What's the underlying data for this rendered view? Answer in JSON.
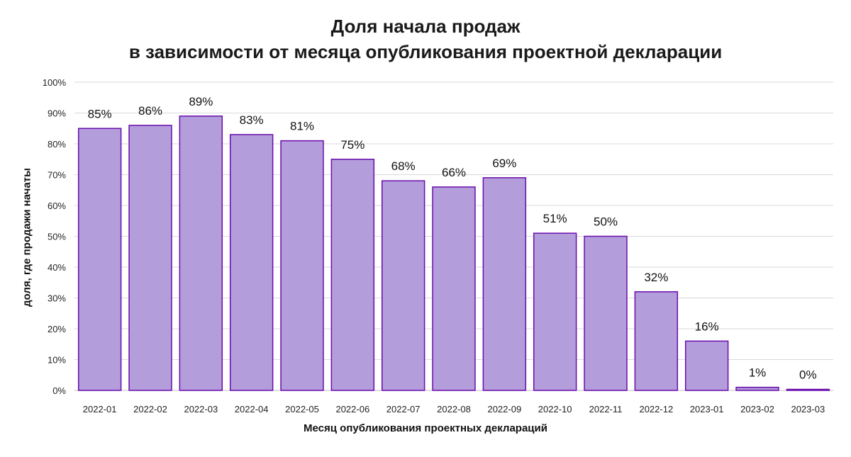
{
  "chart_data": {
    "type": "bar",
    "title_line1": "Доля начала продаж",
    "title_line2": "в зависимости от месяца опубликования проектной декларации",
    "xlabel": "Месяц  опубликования  проектных  деклараций",
    "ylabel": "доля,  где продажи начаты",
    "ylim": [
      0,
      100
    ],
    "y_ticks": [
      "0%",
      "10%",
      "20%",
      "30%",
      "40%",
      "50%",
      "60%",
      "70%",
      "80%",
      "90%",
      "100%"
    ],
    "categories": [
      "2022-01",
      "2022-02",
      "2022-03",
      "2022-04",
      "2022-05",
      "2022-06",
      "2022-07",
      "2022-08",
      "2022-09",
      "2022-10",
      "2022-11",
      "2022-12",
      "2023-01",
      "2023-02",
      "2023-03"
    ],
    "values": [
      85,
      86,
      89,
      83,
      81,
      75,
      68,
      66,
      69,
      51,
      50,
      32,
      16,
      1,
      0
    ],
    "data_labels": [
      "85%",
      "86%",
      "89%",
      "83%",
      "81%",
      "75%",
      "68%",
      "66%",
      "69%",
      "51%",
      "50%",
      "32%",
      "16%",
      "1%",
      "0%"
    ],
    "bar_fill": "#b39ddb",
    "bar_stroke": "#6a0dad",
    "grid": true,
    "legend": "none"
  }
}
